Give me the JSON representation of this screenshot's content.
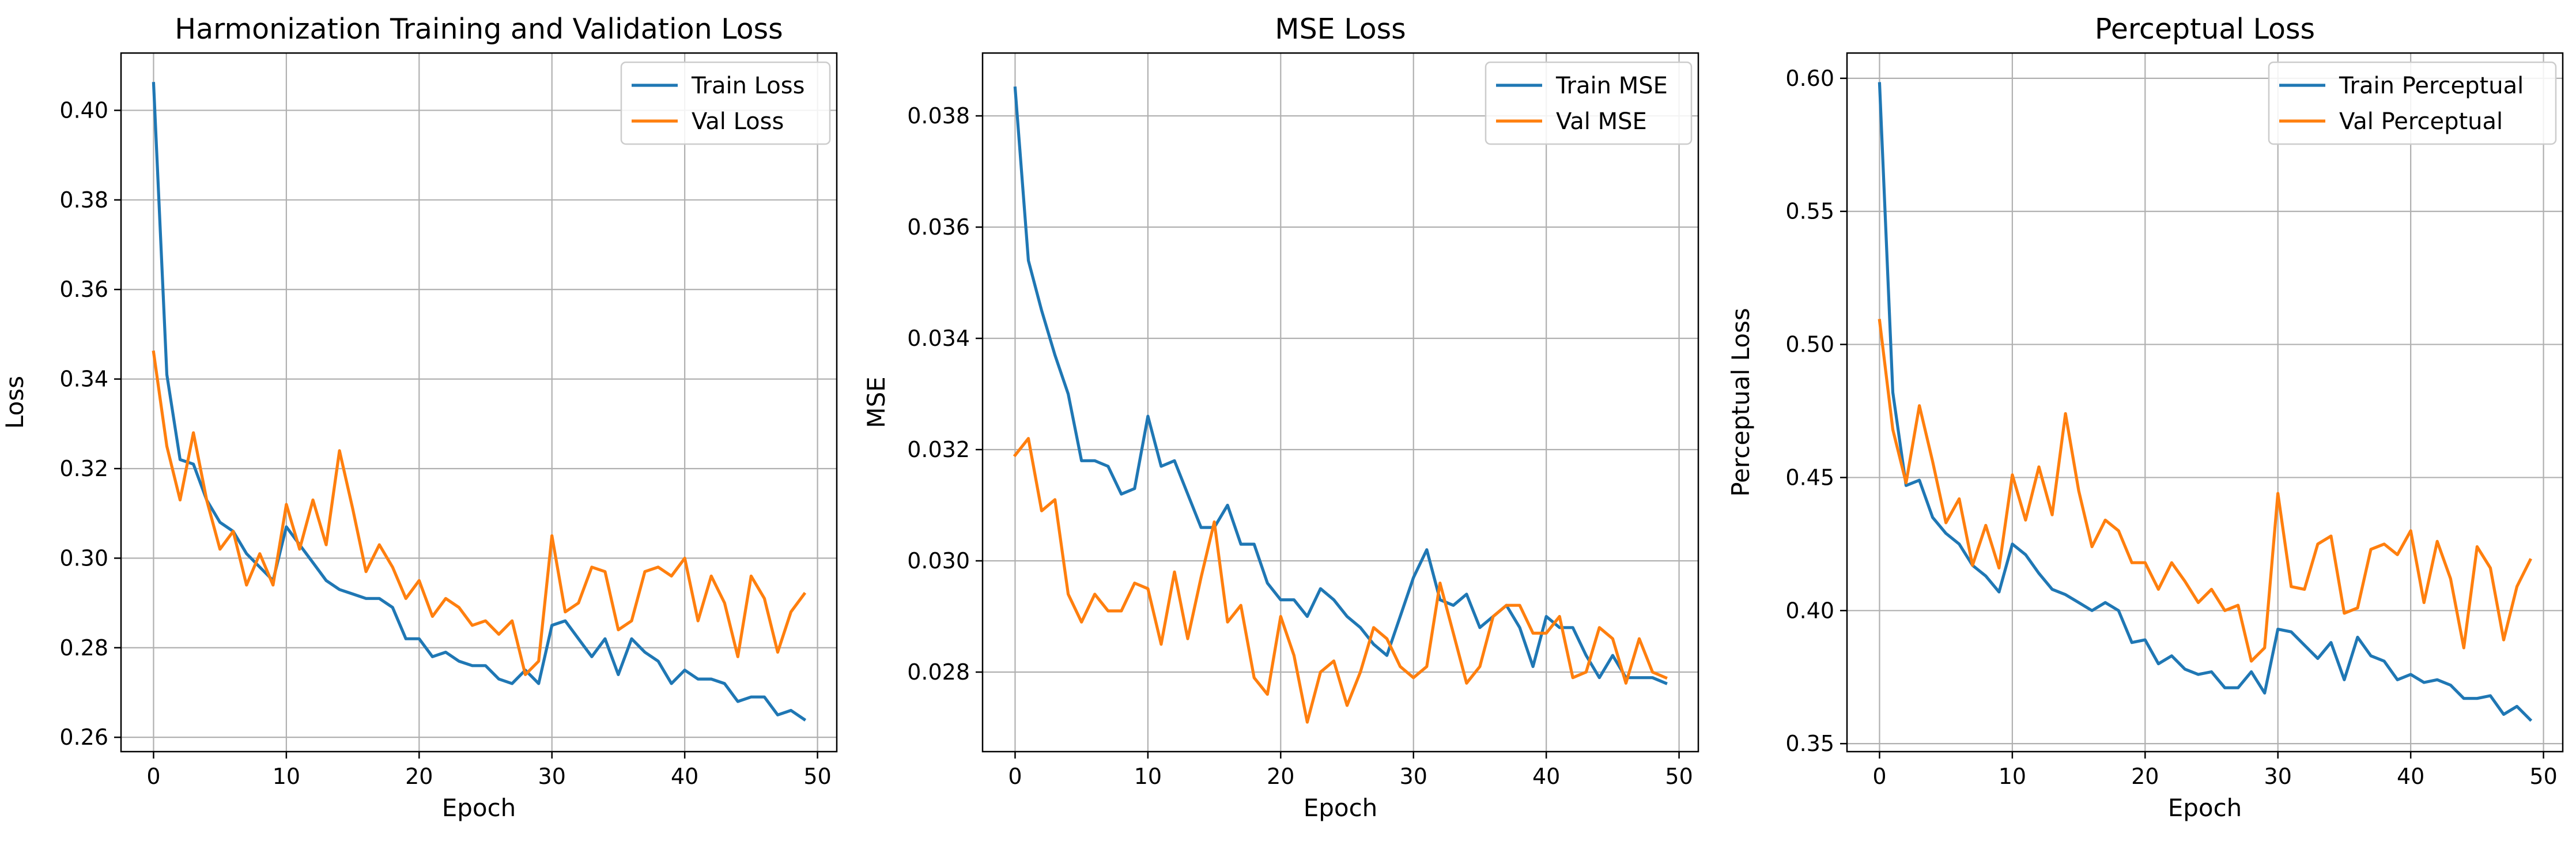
{
  "colors": {
    "train": "#1f77b4",
    "val": "#ff7f0e",
    "grid": "#b0b0b0"
  },
  "chart_data": [
    {
      "type": "line",
      "title": "Harmonization Training and Validation Loss",
      "xlabel": "Epoch",
      "ylabel": "Loss",
      "xlim": [
        -2.45,
        51.45
      ],
      "ylim": [
        0.2568,
        0.4128
      ],
      "xticks": [
        0,
        10,
        20,
        30,
        40,
        50
      ],
      "yticks": [
        0.26,
        0.28,
        0.3,
        0.32,
        0.34,
        0.36,
        0.38,
        0.4
      ],
      "ytick_labels": [
        "0.26",
        "0.28",
        "0.30",
        "0.32",
        "0.34",
        "0.36",
        "0.38",
        "0.40"
      ],
      "grid": true,
      "legend": "top-right",
      "series": [
        {
          "name": "Train Loss",
          "values": [
            0.406,
            0.341,
            0.322,
            0.321,
            0.313,
            0.308,
            0.306,
            0.301,
            0.298,
            0.295,
            0.307,
            0.303,
            0.299,
            0.295,
            0.293,
            0.292,
            0.291,
            0.291,
            0.289,
            0.282,
            0.282,
            0.278,
            0.279,
            0.277,
            0.276,
            0.276,
            0.273,
            0.272,
            0.275,
            0.272,
            0.285,
            0.286,
            0.282,
            0.278,
            0.282,
            0.274,
            0.282,
            0.279,
            0.277,
            0.272,
            0.275,
            0.273,
            0.273,
            0.272,
            0.268,
            0.269,
            0.269,
            0.265,
            0.266,
            0.264
          ]
        },
        {
          "name": "Val Loss",
          "values": [
            0.346,
            0.325,
            0.313,
            0.328,
            0.313,
            0.302,
            0.306,
            0.294,
            0.301,
            0.294,
            0.312,
            0.302,
            0.313,
            0.303,
            0.324,
            0.311,
            0.297,
            0.303,
            0.298,
            0.291,
            0.295,
            0.287,
            0.291,
            0.289,
            0.285,
            0.286,
            0.283,
            0.286,
            0.274,
            0.277,
            0.305,
            0.288,
            0.29,
            0.298,
            0.297,
            0.284,
            0.286,
            0.297,
            0.298,
            0.296,
            0.3,
            0.286,
            0.296,
            0.29,
            0.278,
            0.296,
            0.291,
            0.279,
            0.288,
            0.292
          ]
        }
      ]
    },
    {
      "type": "line",
      "title": "MSE Loss",
      "xlabel": "Epoch",
      "ylabel": "MSE",
      "xlim": [
        -2.45,
        51.45
      ],
      "ylim": [
        0.02657,
        0.03913
      ],
      "xticks": [
        0,
        10,
        20,
        30,
        40,
        50
      ],
      "yticks": [
        0.028,
        0.03,
        0.032,
        0.034,
        0.036,
        0.038
      ],
      "ytick_labels": [
        "0.028",
        "0.030",
        "0.032",
        "0.034",
        "0.036",
        "0.038"
      ],
      "grid": true,
      "legend": "top-right",
      "series": [
        {
          "name": "Train MSE",
          "values": [
            0.0385,
            0.0354,
            0.0345,
            0.0337,
            0.033,
            0.0318,
            0.0318,
            0.0317,
            0.0312,
            0.0313,
            0.0326,
            0.0317,
            0.0318,
            0.0312,
            0.0306,
            0.0306,
            0.031,
            0.0303,
            0.0303,
            0.0296,
            0.0293,
            0.0293,
            0.029,
            0.0295,
            0.0293,
            0.029,
            0.0288,
            0.0285,
            0.0283,
            0.029,
            0.0297,
            0.0302,
            0.0293,
            0.0292,
            0.0294,
            0.0288,
            0.029,
            0.0292,
            0.0288,
            0.0281,
            0.029,
            0.0288,
            0.0288,
            0.0283,
            0.0279,
            0.0283,
            0.0279,
            0.0279,
            0.0279,
            0.0278
          ]
        },
        {
          "name": "Val MSE",
          "values": [
            0.0319,
            0.0322,
            0.0309,
            0.0311,
            0.0294,
            0.0289,
            0.0294,
            0.0291,
            0.0291,
            0.0296,
            0.0295,
            0.0285,
            0.0298,
            0.0286,
            0.0297,
            0.0307,
            0.0289,
            0.0292,
            0.0279,
            0.0276,
            0.029,
            0.0283,
            0.0271,
            0.028,
            0.0282,
            0.0274,
            0.028,
            0.0288,
            0.0286,
            0.0281,
            0.0279,
            0.0281,
            0.0296,
            0.0287,
            0.0278,
            0.0281,
            0.029,
            0.0292,
            0.0292,
            0.0287,
            0.0287,
            0.029,
            0.0279,
            0.028,
            0.0288,
            0.0286,
            0.0278,
            0.0286,
            0.028,
            0.0279
          ]
        }
      ]
    },
    {
      "type": "line",
      "title": "Perceptual Loss",
      "xlabel": "Epoch",
      "ylabel": "Perceptual Loss",
      "xlim": [
        -2.45,
        51.45
      ],
      "ylim": [
        0.347,
        0.6095
      ],
      "xticks": [
        0,
        10,
        20,
        30,
        40,
        50
      ],
      "yticks": [
        0.35,
        0.4,
        0.45,
        0.5,
        0.55,
        0.6
      ],
      "ytick_labels": [
        "0.35",
        "0.40",
        "0.45",
        "0.50",
        "0.55",
        "0.60"
      ],
      "grid": true,
      "legend": "top-right",
      "series": [
        {
          "name": "Train Perceptual",
          "values": [
            0.598,
            0.482,
            0.447,
            0.449,
            0.435,
            0.429,
            0.425,
            0.417,
            0.413,
            0.407,
            0.425,
            0.421,
            0.414,
            0.408,
            0.406,
            0.403,
            0.4,
            0.403,
            0.4,
            0.388,
            0.389,
            0.38,
            0.383,
            0.378,
            0.376,
            0.377,
            0.371,
            0.371,
            0.377,
            0.369,
            0.393,
            0.392,
            0.387,
            0.382,
            0.388,
            0.374,
            0.39,
            0.383,
            0.381,
            0.374,
            0.376,
            0.373,
            0.374,
            0.372,
            0.367,
            0.367,
            0.368,
            0.361,
            0.364,
            0.359
          ]
        },
        {
          "name": "Val Perceptual",
          "values": [
            0.509,
            0.468,
            0.448,
            0.477,
            0.456,
            0.433,
            0.442,
            0.417,
            0.432,
            0.416,
            0.451,
            0.434,
            0.454,
            0.436,
            0.474,
            0.445,
            0.424,
            0.434,
            0.43,
            0.418,
            0.418,
            0.408,
            0.418,
            0.411,
            0.403,
            0.408,
            0.4,
            0.402,
            0.381,
            0.386,
            0.444,
            0.409,
            0.408,
            0.425,
            0.428,
            0.399,
            0.401,
            0.423,
            0.425,
            0.421,
            0.43,
            0.403,
            0.426,
            0.412,
            0.386,
            0.424,
            0.416,
            0.389,
            0.409,
            0.419
          ]
        }
      ]
    }
  ]
}
